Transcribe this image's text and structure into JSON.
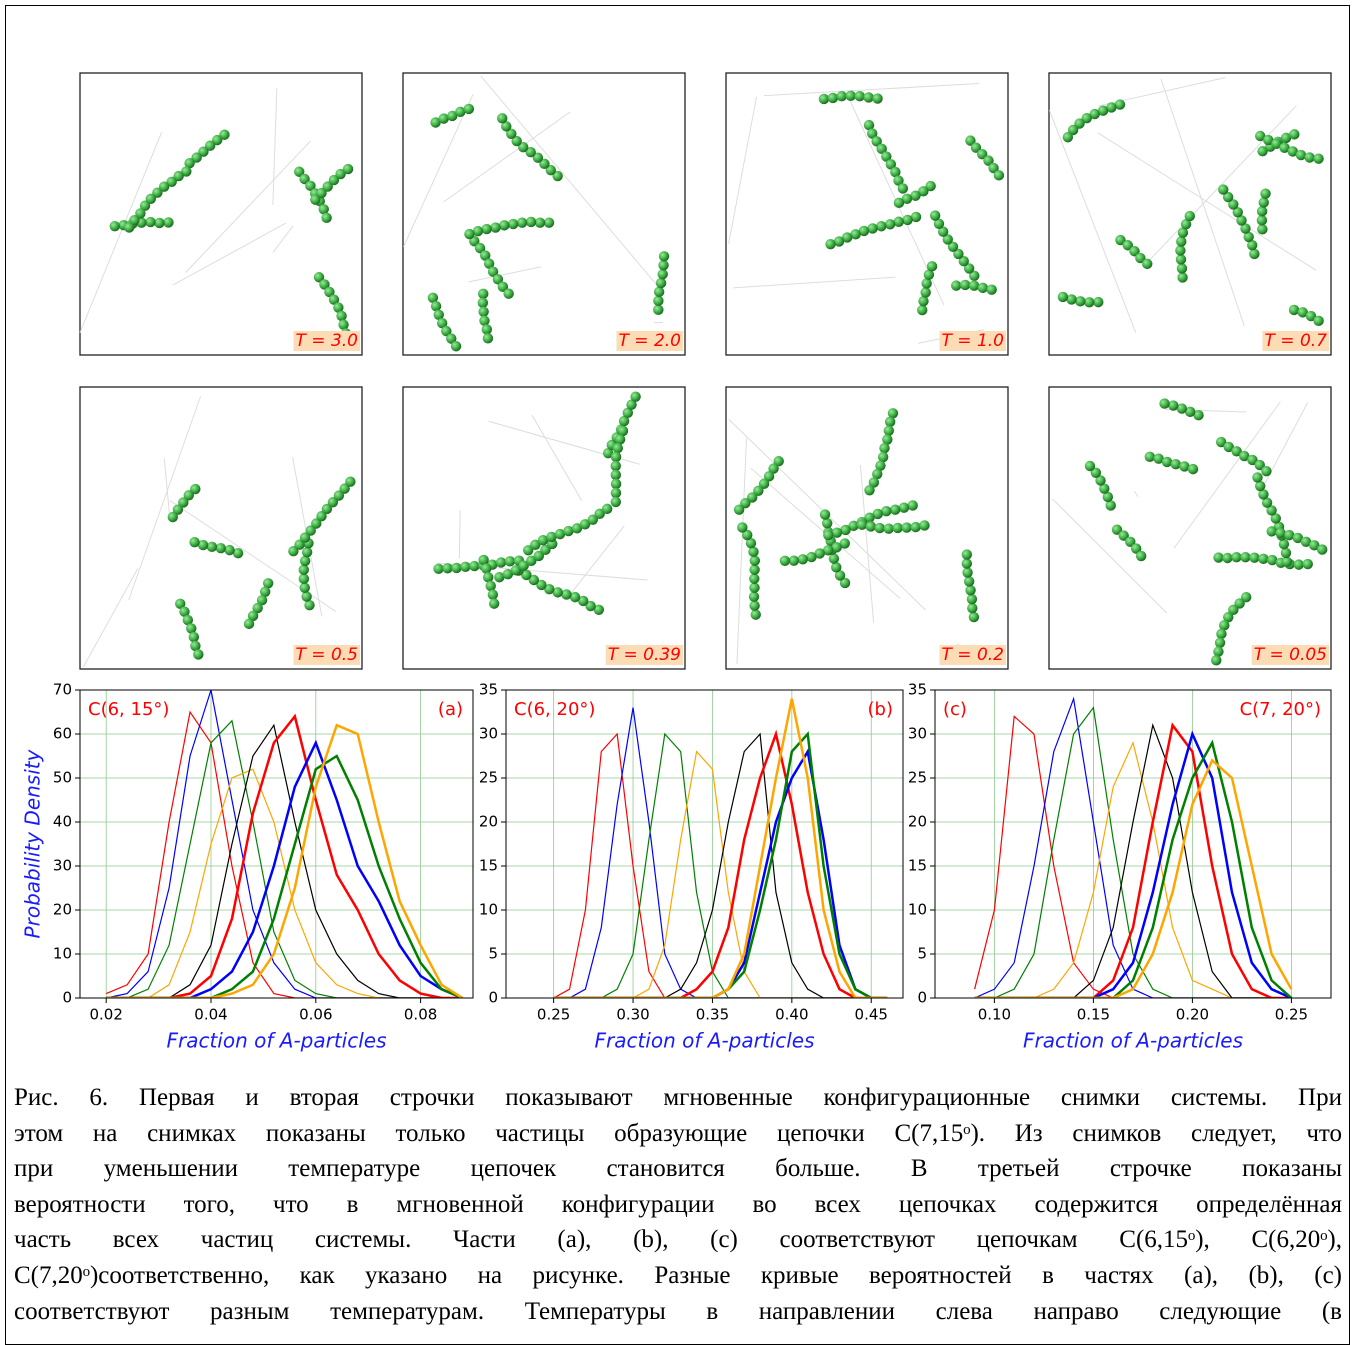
{
  "snapshots": [
    {
      "label": "T = 3.0"
    },
    {
      "label": "T = 2.0"
    },
    {
      "label": "T = 1.0"
    },
    {
      "label": "T = 0.7"
    },
    {
      "label": "T = 0.5"
    },
    {
      "label": "T = 0.39"
    },
    {
      "label": "T = 0.2"
    },
    {
      "label": "T = 0.05"
    }
  ],
  "chart_data": [
    {
      "type": "line",
      "y_label": "Probability Density",
      "x_label": "Fraction of A-particles",
      "annotations": [
        "C(6, 15°)",
        "(a)"
      ],
      "xlim": [
        0.015,
        0.09
      ],
      "xticks": [
        0.02,
        0.04,
        0.06,
        0.08
      ],
      "ylim": [
        0,
        70
      ],
      "yticks": [
        0,
        10,
        20,
        30,
        40,
        50,
        60,
        70
      ],
      "grid": true,
      "x": [
        0.02,
        0.024,
        0.028,
        0.032,
        0.036,
        0.04,
        0.044,
        0.048,
        0.052,
        0.056,
        0.06,
        0.064,
        0.068,
        0.072,
        0.076,
        0.08,
        0.084,
        0.088
      ],
      "series": [
        {
          "color": "#ff0000",
          "line_width": 1.2,
          "values": [
            1,
            3,
            10,
            40,
            65,
            58,
            30,
            8,
            1,
            0,
            0,
            0,
            0,
            0,
            0,
            0,
            0,
            0
          ]
        },
        {
          "color": "#0000ff",
          "line_width": 1.2,
          "values": [
            0,
            1,
            6,
            25,
            55,
            70,
            45,
            20,
            8,
            2,
            0,
            0,
            0,
            0,
            0,
            0,
            0,
            0
          ]
        },
        {
          "color": "#008000",
          "line_width": 1.2,
          "values": [
            0,
            0,
            2,
            12,
            35,
            58,
            63,
            40,
            15,
            4,
            1,
            0,
            0,
            0,
            0,
            0,
            0,
            0
          ]
        },
        {
          "color": "#ffa500",
          "line_width": 1.2,
          "values": [
            0,
            0,
            0,
            3,
            15,
            35,
            50,
            52,
            40,
            20,
            8,
            3,
            1,
            0,
            0,
            0,
            0,
            0
          ]
        },
        {
          "color": "#000000",
          "line_width": 1.2,
          "values": [
            0,
            0,
            0,
            0,
            3,
            12,
            35,
            55,
            62,
            40,
            20,
            10,
            4,
            1,
            0,
            0,
            0,
            0
          ]
        },
        {
          "color": "#ff0000",
          "line_width": 2.5,
          "values": [
            0,
            0,
            0,
            0,
            1,
            5,
            18,
            42,
            58,
            64,
            45,
            28,
            20,
            10,
            4,
            1,
            0,
            0
          ]
        },
        {
          "color": "#0000ff",
          "line_width": 2.5,
          "values": [
            0,
            0,
            0,
            0,
            0,
            2,
            6,
            15,
            30,
            48,
            58,
            45,
            30,
            22,
            12,
            5,
            2,
            0
          ]
        },
        {
          "color": "#008000",
          "line_width": 2.5,
          "values": [
            0,
            0,
            0,
            0,
            0,
            0,
            2,
            6,
            18,
            35,
            52,
            55,
            45,
            30,
            18,
            8,
            2,
            0
          ]
        },
        {
          "color": "#ffa500",
          "line_width": 2.5,
          "values": [
            0,
            0,
            0,
            0,
            0,
            0,
            1,
            3,
            10,
            25,
            48,
            62,
            60,
            40,
            22,
            12,
            3,
            0
          ]
        }
      ]
    },
    {
      "type": "line",
      "x_label": "Fraction of A-particles",
      "annotations": [
        "C(6, 20°)",
        "(b)"
      ],
      "xlim": [
        0.22,
        0.47
      ],
      "xticks": [
        0.25,
        {
          "value": 0.3,
          "label": "0.30"
        },
        0.35,
        {
          "value": 0.4,
          "label": "0.40"
        },
        0.45
      ],
      "ylim": [
        0,
        35
      ],
      "yticks": [
        0,
        5,
        10,
        15,
        20,
        25,
        30,
        35
      ],
      "grid": true,
      "x": [
        0.25,
        0.26,
        0.27,
        0.28,
        0.29,
        0.3,
        0.31,
        0.32,
        0.33,
        0.34,
        0.35,
        0.36,
        0.37,
        0.38,
        0.39,
        0.4,
        0.41,
        0.42,
        0.43,
        0.44,
        0.45,
        0.46
      ],
      "series": [
        {
          "color": "#ff0000",
          "line_width": 1.2,
          "values": [
            0,
            1,
            10,
            28,
            30,
            15,
            3,
            0,
            0,
            0,
            0,
            0,
            0,
            0,
            0,
            0,
            0,
            0,
            0,
            0,
            0,
            0
          ]
        },
        {
          "color": "#0000ff",
          "line_width": 1.2,
          "values": [
            0,
            0,
            1,
            8,
            22,
            33,
            20,
            5,
            1,
            0,
            0,
            0,
            0,
            0,
            0,
            0,
            0,
            0,
            0,
            0,
            0,
            0
          ]
        },
        {
          "color": "#008000",
          "line_width": 1.2,
          "values": [
            0,
            0,
            0,
            0,
            1,
            5,
            18,
            30,
            28,
            12,
            3,
            0,
            0,
            0,
            0,
            0,
            0,
            0,
            0,
            0,
            0,
            0
          ]
        },
        {
          "color": "#ffa500",
          "line_width": 1.2,
          "values": [
            0,
            0,
            0,
            0,
            0,
            0,
            1,
            6,
            18,
            28,
            26,
            12,
            3,
            0,
            0,
            0,
            0,
            0,
            0,
            0,
            0,
            0
          ]
        },
        {
          "color": "#000000",
          "line_width": 1.2,
          "values": [
            0,
            0,
            0,
            0,
            0,
            0,
            0,
            0,
            1,
            4,
            10,
            20,
            28,
            30,
            12,
            4,
            1,
            0,
            0,
            0,
            0,
            0
          ]
        },
        {
          "color": "#ff0000",
          "line_width": 2.5,
          "values": [
            0,
            0,
            0,
            0,
            0,
            0,
            0,
            0,
            0,
            1,
            3,
            8,
            18,
            25,
            30,
            22,
            12,
            5,
            1,
            0,
            0,
            0
          ]
        },
        {
          "color": "#0000ff",
          "line_width": 2.5,
          "values": [
            0,
            0,
            0,
            0,
            0,
            0,
            0,
            0,
            0,
            0,
            0,
            1,
            4,
            12,
            20,
            25,
            28,
            18,
            6,
            1,
            0,
            0
          ]
        },
        {
          "color": "#008000",
          "line_width": 2.5,
          "values": [
            0,
            0,
            0,
            0,
            0,
            0,
            0,
            0,
            0,
            0,
            0,
            1,
            3,
            10,
            18,
            28,
            30,
            15,
            5,
            1,
            0,
            0
          ]
        },
        {
          "color": "#ffa500",
          "line_width": 2.5,
          "values": [
            0,
            0,
            0,
            0,
            0,
            0,
            0,
            0,
            0,
            0,
            0,
            1,
            5,
            15,
            25,
            34,
            25,
            10,
            3,
            0,
            0,
            0
          ]
        }
      ]
    },
    {
      "type": "line",
      "x_label": "Fraction of A-particles",
      "annotations": [
        "(c)",
        "C(7, 20°)"
      ],
      "xlim": [
        0.07,
        0.27
      ],
      "xticks": [
        {
          "value": 0.1,
          "label": "0.10"
        },
        0.15,
        {
          "value": 0.2,
          "label": "0.20"
        },
        0.25
      ],
      "ylim": [
        0,
        35
      ],
      "yticks": [
        0,
        5,
        10,
        15,
        20,
        25,
        30,
        35
      ],
      "grid": true,
      "x": [
        0.09,
        0.1,
        0.11,
        0.12,
        0.13,
        0.14,
        0.15,
        0.16,
        0.17,
        0.18,
        0.19,
        0.2,
        0.21,
        0.22,
        0.23,
        0.24,
        0.25
      ],
      "series": [
        {
          "color": "#ff0000",
          "line_width": 1.2,
          "values": [
            1,
            10,
            32,
            30,
            15,
            4,
            1,
            0,
            0,
            0,
            0,
            0,
            0,
            0,
            0,
            0,
            0
          ]
        },
        {
          "color": "#0000ff",
          "line_width": 1.2,
          "values": [
            0,
            1,
            4,
            15,
            28,
            34,
            20,
            6,
            1,
            0,
            0,
            0,
            0,
            0,
            0,
            0,
            0
          ]
        },
        {
          "color": "#008000",
          "line_width": 1.2,
          "values": [
            0,
            0,
            1,
            5,
            18,
            30,
            33,
            18,
            5,
            1,
            0,
            0,
            0,
            0,
            0,
            0,
            0
          ]
        },
        {
          "color": "#ffa500",
          "line_width": 1.2,
          "values": [
            0,
            0,
            0,
            0,
            1,
            4,
            12,
            24,
            29,
            20,
            8,
            2,
            1,
            0,
            0,
            0,
            0
          ]
        },
        {
          "color": "#000000",
          "line_width": 1.2,
          "values": [
            0,
            0,
            0,
            0,
            0,
            0,
            2,
            8,
            20,
            31,
            25,
            12,
            3,
            0,
            0,
            0,
            0
          ]
        },
        {
          "color": "#ff0000",
          "line_width": 2.5,
          "values": [
            0,
            0,
            0,
            0,
            0,
            0,
            0,
            2,
            8,
            20,
            31,
            28,
            15,
            5,
            1,
            0,
            0
          ]
        },
        {
          "color": "#0000ff",
          "line_width": 2.5,
          "values": [
            0,
            0,
            0,
            0,
            0,
            0,
            0,
            1,
            4,
            12,
            22,
            30,
            25,
            12,
            4,
            1,
            0
          ]
        },
        {
          "color": "#008000",
          "line_width": 2.5,
          "values": [
            0,
            0,
            0,
            0,
            0,
            0,
            0,
            0,
            2,
            8,
            18,
            25,
            29,
            20,
            8,
            2,
            0
          ]
        },
        {
          "color": "#ffa500",
          "line_width": 2.5,
          "values": [
            0,
            0,
            0,
            0,
            0,
            0,
            0,
            0,
            1,
            5,
            12,
            22,
            27,
            25,
            15,
            5,
            1
          ]
        }
      ]
    }
  ],
  "caption": {
    "lines": [
      "Рис. 6. Первая и вторая строчки показывают мгновенные конфигурационные снимки системы. При",
      "этом на снимках показаны только частицы образующие цепочки C(7,15ᵒ). Из снимков следует, что",
      "при уменьшении температуре цепочек становится больше. В третьей строчке показаны",
      "вероятности того, что в мгновенной конфигурации во всех цепочках содержится определённая",
      "часть всех частиц системы. Части (a), (b), (c)  соответствуют цепочкам C(6,15ᵒ), C(6,20ᵒ),",
      "C(7,20ᵒ)соответственно, как указано на рисунке. Разные кривые вероятностей в частях  (a), (b), (c)",
      "соответствуют разным температурам. Температуры в направлении слева направо следующие (в"
    ]
  }
}
